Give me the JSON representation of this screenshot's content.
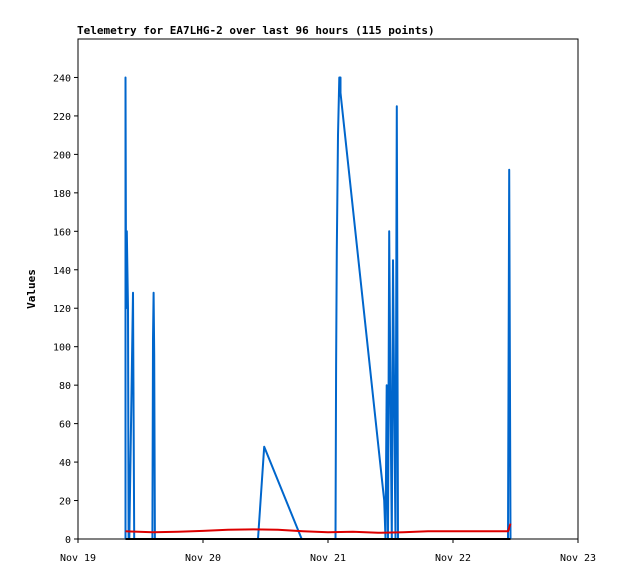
{
  "chart_data": {
    "type": "line",
    "title": "Telemetry for EA7LHG-2 over last 96 hours (115 points)",
    "xlabel": "",
    "ylabel": "Values",
    "x_ticks": [
      "Nov 19",
      "Nov 20",
      "Nov 21",
      "Nov 22",
      "Nov 23"
    ],
    "x_range_days": [
      19,
      23
    ],
    "ylim": [
      0,
      260
    ],
    "y_ticks": [
      0,
      20,
      40,
      60,
      80,
      100,
      120,
      140,
      160,
      180,
      200,
      220,
      240
    ],
    "grid": false,
    "legend": "none",
    "series": [
      {
        "color": "#0066cc",
        "x": [
          19.38,
          19.38,
          19.385,
          19.39,
          19.395,
          19.4,
          19.405,
          19.41,
          19.44,
          19.445,
          19.45,
          19.455,
          19.46,
          19.595,
          19.6,
          19.605,
          19.61,
          19.615,
          19.62,
          20.44,
          20.49,
          20.79,
          21.06,
          21.065,
          21.07,
          21.08,
          21.09,
          21.1,
          21.1,
          21.45,
          21.46,
          21.47,
          21.48,
          21.49,
          21.5,
          21.51,
          21.52,
          21.53,
          21.54,
          21.55,
          21.56,
          21.57,
          21.58,
          21.59,
          21.6,
          21.61,
          22.44,
          22.445,
          22.45,
          22.46
        ],
        "y": [
          0,
          240,
          120,
          160,
          140,
          120,
          0,
          0,
          128,
          64,
          0,
          0,
          0,
          0,
          104,
          128,
          96,
          0,
          0,
          0,
          48,
          0,
          0,
          90,
          150,
          210,
          240,
          240,
          232,
          20,
          0,
          80,
          0,
          160,
          72,
          0,
          145,
          65,
          0,
          225,
          0,
          0,
          0,
          0,
          0,
          0,
          0,
          96,
          192,
          0
        ]
      },
      {
        "color": "#dd0000",
        "x": [
          19.38,
          19.6,
          19.8,
          20.0,
          20.2,
          20.4,
          20.6,
          20.8,
          21.0,
          21.2,
          21.4,
          21.6,
          21.8,
          22.0,
          22.2,
          22.4,
          22.44,
          22.46
        ],
        "y": [
          4,
          3.5,
          3.8,
          4.2,
          4.8,
          5,
          4.8,
          4,
          3.5,
          3.8,
          3.2,
          3.5,
          4,
          4,
          4,
          4,
          4,
          8
        ]
      },
      {
        "color": "#000000",
        "x": [
          19.38,
          19.6,
          19.8,
          20.0,
          20.4,
          20.8,
          21.1,
          21.6,
          22.0,
          22.46
        ],
        "y": [
          0,
          0,
          0,
          0,
          0,
          0,
          0,
          0,
          0,
          0
        ]
      }
    ]
  }
}
